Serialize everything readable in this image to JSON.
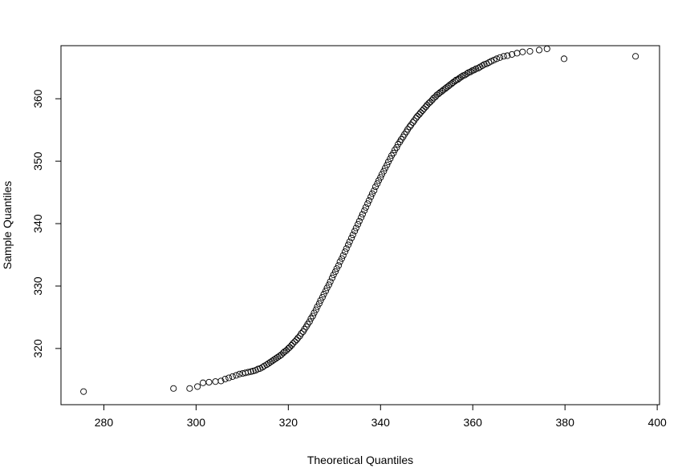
{
  "chart_data": {
    "type": "scatter",
    "title": "",
    "xlabel": "Theoretical Quantiles",
    "ylabel": "Sample Quantiles",
    "xlim": [
      270.7,
      400.5
    ],
    "ylim": [
      311.0,
      368.5
    ],
    "xticks": [
      280,
      300,
      320,
      340,
      360,
      380,
      400
    ],
    "yticks": [
      320,
      330,
      340,
      350,
      360
    ],
    "grid": false,
    "legend": "none",
    "marker": "open-circle",
    "x": [
      275.6,
      295.1,
      298.6,
      300.3,
      301.5,
      302.8,
      304.2,
      305.4,
      306.3,
      307.1,
      307.9,
      308.7,
      309.4,
      310.1,
      310.7,
      311.3,
      311.9,
      312.4,
      312.9,
      313.4,
      313.9,
      314.4,
      314.8,
      315.3,
      315.7,
      316.1,
      316.5,
      316.9,
      317.3,
      317.7,
      318.1,
      318.5,
      318.9,
      319.2,
      319.6,
      320.0,
      320.3,
      320.7,
      321.0,
      321.4,
      321.8,
      322.1,
      322.5,
      322.8,
      323.2,
      323.5,
      323.9,
      324.2,
      324.6,
      324.9,
      325.3,
      325.6,
      326.0,
      326.3,
      326.7,
      327.0,
      327.4,
      327.7,
      328.1,
      328.4,
      328.8,
      329.1,
      329.5,
      329.8,
      330.2,
      330.5,
      330.9,
      331.2,
      331.6,
      331.9,
      332.3,
      332.6,
      333.0,
      333.3,
      333.7,
      334.0,
      334.4,
      334.7,
      335.1,
      335.4,
      335.8,
      336.1,
      336.5,
      336.8,
      337.2,
      337.5,
      337.9,
      338.2,
      338.6,
      338.9,
      339.3,
      339.6,
      340.0,
      340.3,
      340.7,
      341.0,
      341.4,
      341.7,
      342.1,
      342.4,
      342.8,
      343.1,
      343.5,
      343.8,
      344.2,
      344.5,
      344.9,
      345.2,
      345.6,
      345.9,
      346.3,
      346.6,
      347.0,
      347.3,
      347.7,
      348.0,
      348.4,
      348.7,
      349.1,
      349.4,
      349.8,
      350.1,
      350.5,
      350.8,
      351.2,
      351.5,
      351.9,
      352.2,
      352.6,
      352.9,
      353.3,
      353.6,
      354.0,
      354.3,
      354.7,
      355.0,
      355.4,
      355.7,
      356.1,
      356.4,
      356.8,
      357.1,
      357.5,
      357.9,
      358.3,
      358.7,
      359.1,
      359.5,
      359.9,
      360.3,
      360.7,
      361.2,
      361.6,
      362.1,
      362.5,
      363.0,
      363.5,
      364.0,
      364.6,
      365.2,
      365.9,
      366.7,
      367.5,
      368.5,
      369.6,
      370.8,
      372.4,
      374.4,
      376.1,
      379.8,
      395.3
    ],
    "y": [
      313.1,
      313.6,
      313.6,
      313.9,
      314.5,
      314.6,
      314.7,
      314.8,
      315.1,
      315.3,
      315.5,
      315.7,
      315.9,
      316.0,
      316.1,
      316.2,
      316.3,
      316.4,
      316.5,
      316.7,
      316.8,
      317.0,
      317.2,
      317.4,
      317.6,
      317.8,
      318.0,
      318.2,
      318.4,
      318.6,
      318.8,
      319.0,
      319.3,
      319.5,
      319.7,
      320.0,
      320.2,
      320.5,
      320.8,
      321.1,
      321.4,
      321.7,
      322.0,
      322.4,
      322.7,
      323.1,
      323.5,
      323.9,
      324.3,
      324.8,
      325.2,
      325.7,
      326.2,
      326.7,
      327.2,
      327.7,
      328.2,
      328.7,
      329.2,
      329.7,
      330.2,
      330.7,
      331.3,
      331.8,
      332.3,
      332.8,
      333.3,
      333.9,
      334.4,
      334.9,
      335.5,
      336.0,
      336.6,
      337.1,
      337.7,
      338.2,
      338.8,
      339.3,
      339.9,
      340.4,
      341.0,
      341.5,
      342.1,
      342.6,
      343.2,
      343.7,
      344.3,
      344.8,
      345.3,
      345.9,
      346.4,
      346.9,
      347.4,
      347.9,
      348.4,
      348.9,
      349.4,
      349.9,
      350.4,
      350.9,
      351.3,
      351.8,
      352.2,
      352.7,
      353.1,
      353.5,
      353.9,
      354.3,
      354.7,
      355.1,
      355.5,
      355.8,
      356.2,
      356.5,
      356.9,
      357.2,
      357.5,
      357.8,
      358.1,
      358.4,
      358.7,
      359.0,
      359.3,
      359.5,
      359.8,
      360.1,
      360.3,
      360.6,
      360.8,
      361.0,
      361.2,
      361.4,
      361.6,
      361.8,
      362.0,
      362.2,
      362.4,
      362.6,
      362.8,
      363.0,
      363.1,
      363.3,
      363.5,
      363.7,
      363.8,
      364.0,
      364.2,
      364.3,
      364.5,
      364.6,
      364.8,
      364.9,
      365.1,
      365.3,
      365.5,
      365.6,
      365.8,
      366.0,
      366.2,
      366.4,
      366.6,
      366.8,
      366.9,
      367.1,
      367.3,
      367.5,
      367.6,
      367.8,
      368.0,
      366.4,
      366.8
    ]
  }
}
